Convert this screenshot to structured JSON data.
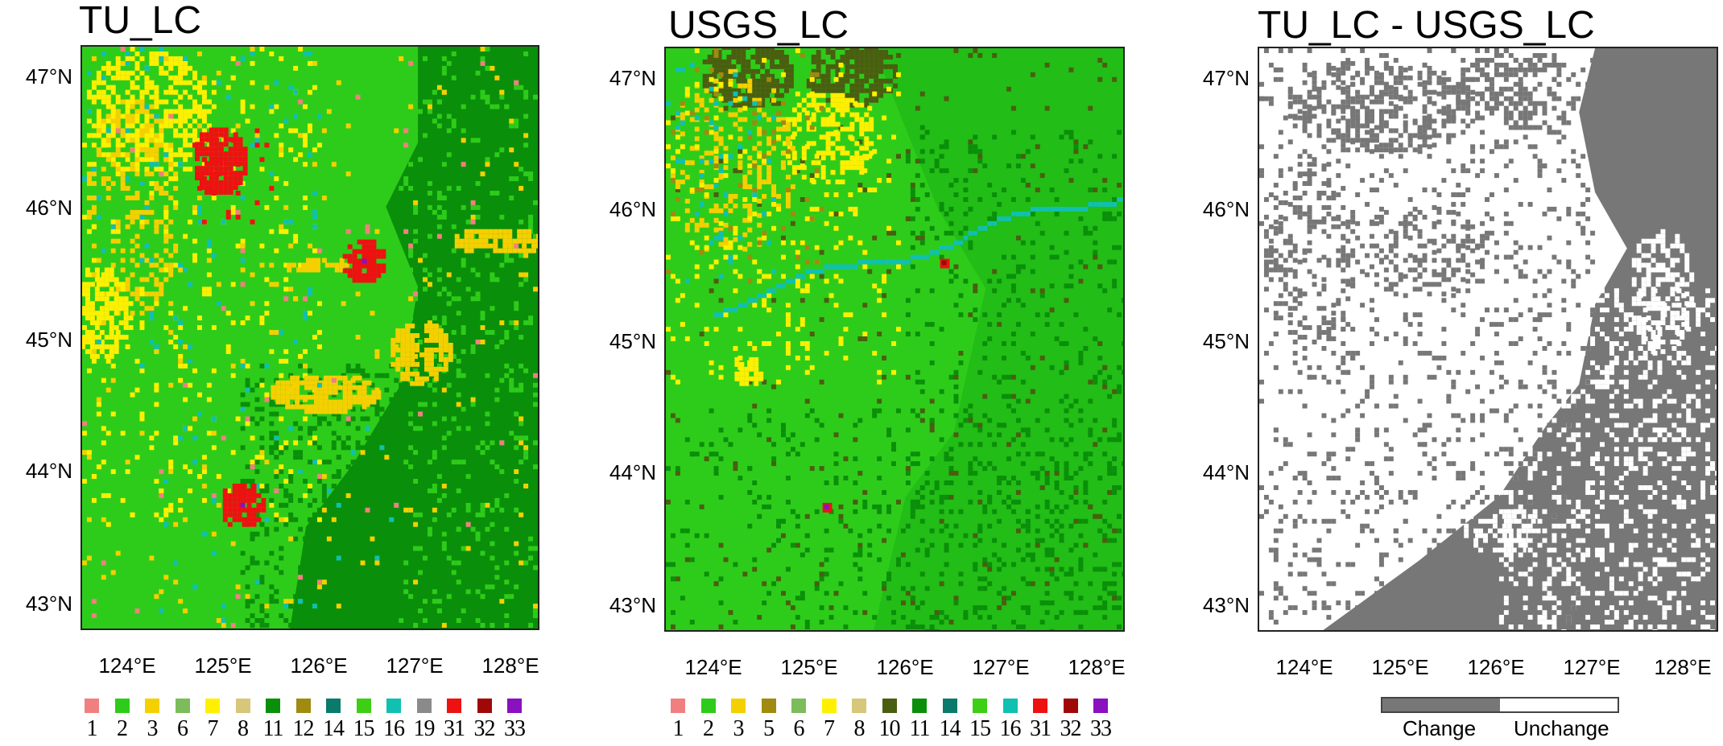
{
  "panels": [
    {
      "id": "tu",
      "title": "TU_LC",
      "dominant": "#2ecc1a",
      "legend": [
        {
          "n": "1",
          "color": "#f08080"
        },
        {
          "n": "2",
          "color": "#2ecc1a"
        },
        {
          "n": "3",
          "color": "#f5d000"
        },
        {
          "n": "6",
          "color": "#7cbc5a"
        },
        {
          "n": "7",
          "color": "#fff000"
        },
        {
          "n": "8",
          "color": "#d7c77a"
        },
        {
          "n": "11",
          "color": "#0a8f0a"
        },
        {
          "n": "12",
          "color": "#a08a10"
        },
        {
          "n": "14",
          "color": "#0a7a6a"
        },
        {
          "n": "15",
          "color": "#3ccf14"
        },
        {
          "n": "16",
          "color": "#10c0b0"
        },
        {
          "n": "19",
          "color": "#8a8a8a"
        },
        {
          "n": "31",
          "color": "#ee1111"
        },
        {
          "n": "32",
          "color": "#a00808"
        },
        {
          "n": "33",
          "color": "#8a10c0"
        }
      ]
    },
    {
      "id": "usgs",
      "title": "USGS_LC",
      "dominant": "#2ecc1a",
      "legend": [
        {
          "n": "1",
          "color": "#f08080"
        },
        {
          "n": "2",
          "color": "#2ecc1a"
        },
        {
          "n": "3",
          "color": "#f5d000"
        },
        {
          "n": "5",
          "color": "#a08a10"
        },
        {
          "n": "6",
          "color": "#7cbc5a"
        },
        {
          "n": "7",
          "color": "#fff000"
        },
        {
          "n": "8",
          "color": "#d7c77a"
        },
        {
          "n": "10",
          "color": "#4a5e10"
        },
        {
          "n": "11",
          "color": "#0a8f0a"
        },
        {
          "n": "14",
          "color": "#0a7a6a"
        },
        {
          "n": "15",
          "color": "#3ccf14"
        },
        {
          "n": "16",
          "color": "#10c0b0"
        },
        {
          "n": "31",
          "color": "#ee1111"
        },
        {
          "n": "32",
          "color": "#a00808"
        },
        {
          "n": "33",
          "color": "#8a10c0"
        }
      ]
    },
    {
      "id": "diff",
      "title": "TU_LC - USGS_LC",
      "change_legend": {
        "change_label": "Change",
        "unchange_label": "Unchange",
        "change_color": "#777777",
        "unchange_color": "#ffffff"
      }
    }
  ],
  "axes": {
    "lat_labels": [
      "47°N",
      "46°N",
      "45°N",
      "44°N",
      "43°N"
    ],
    "lon_labels": [
      "124°E",
      "125°E",
      "126°E",
      "127°E",
      "128°E"
    ]
  }
}
